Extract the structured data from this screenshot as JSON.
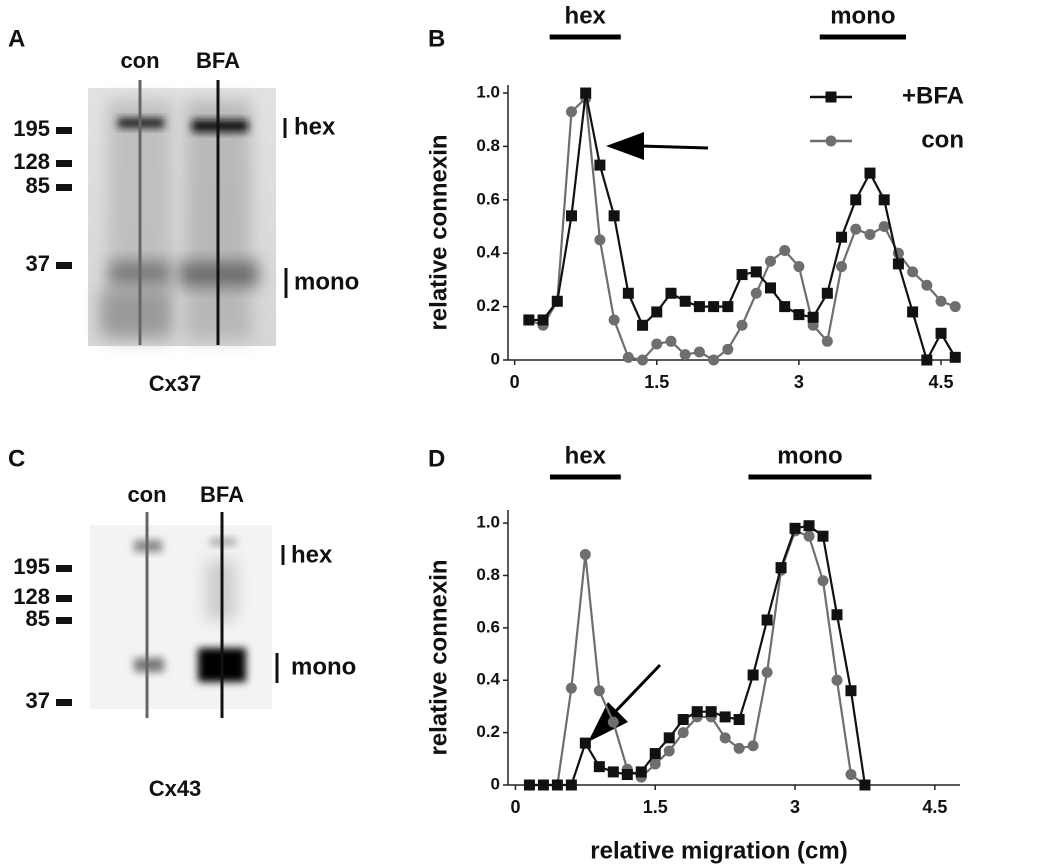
{
  "panel_letters": [
    "A",
    "B",
    "C",
    "D"
  ],
  "blots": [
    {
      "lanes": [
        "con",
        "BFA"
      ],
      "markers": [
        195,
        128,
        85,
        37
      ],
      "bands": [
        "hex",
        "mono"
      ],
      "name": "Cx37"
    },
    {
      "lanes": [
        "con",
        "BFA"
      ],
      "markers": [
        195,
        128,
        85,
        37
      ],
      "bands": [
        "hex",
        "mono"
      ],
      "name": "Cx43"
    }
  ],
  "chart_data": [
    {
      "type": "line",
      "ylabel": "relative connexin",
      "regions": [
        {
          "label": "hex",
          "range": [
            0.37,
            1.12
          ]
        },
        {
          "label": "mono",
          "range": [
            3.22,
            4.13
          ]
        }
      ],
      "xlim": [
        -0.07,
        4.7
      ],
      "ylim": [
        0,
        1.03
      ],
      "xticks": [
        0,
        1.5,
        3,
        4.5
      ],
      "yticks": [
        0,
        {
          "value": 0.2,
          "label": "0.2"
        },
        {
          "value": 0.4,
          "label": "0.4"
        },
        {
          "value": 0.6,
          "label": "0.6"
        },
        {
          "value": 0.8,
          "label": "0.8"
        },
        {
          "value": 1,
          "label": "1.0"
        }
      ],
      "legend": "top-right",
      "x": [
        0.15,
        0.3,
        0.45,
        0.6,
        0.75,
        0.9,
        1.05,
        1.2,
        1.35,
        1.5,
        1.65,
        1.8,
        1.95,
        2.1,
        2.25,
        2.4,
        2.55,
        2.7,
        2.85,
        3.0,
        3.15,
        3.3,
        3.45,
        3.6,
        3.75,
        3.9,
        4.05,
        4.2,
        4.35,
        4.5,
        4.65
      ],
      "series": [
        {
          "name": "+BFA",
          "color": "#111111",
          "marker": "square",
          "values": [
            0.15,
            0.15,
            0.22,
            0.54,
            1.0,
            0.73,
            0.54,
            0.25,
            0.13,
            0.18,
            0.25,
            0.22,
            0.2,
            0.2,
            0.2,
            0.32,
            0.33,
            0.27,
            0.2,
            0.17,
            0.16,
            0.25,
            0.46,
            0.6,
            0.7,
            0.6,
            0.36,
            0.18,
            0,
            0.1,
            0.01
          ]
        },
        {
          "name": "con",
          "color": "#6e6e6e",
          "marker": "circle",
          "values": [
            0.15,
            0.13,
            0.22,
            0.93,
            0.98,
            0.45,
            0.15,
            0.01,
            0,
            0.06,
            0.07,
            0.02,
            0.03,
            0,
            0.04,
            0.13,
            0.25,
            0.37,
            0.41,
            0.35,
            0.13,
            0.07,
            0.35,
            0.49,
            0.47,
            0.5,
            0.4,
            0.33,
            0.28,
            0.22,
            0.2
          ]
        }
      ]
    },
    {
      "type": "line",
      "ylabel": "relative connexin",
      "xlabel": "relative migration (cm)",
      "regions": [
        {
          "label": "hex",
          "range": [
            0.37,
            1.13
          ]
        },
        {
          "label": "mono",
          "range": [
            2.5,
            3.82
          ]
        }
      ],
      "xlim": [
        -0.08,
        4.77
      ],
      "ylim": [
        0,
        1.05
      ],
      "xticks": [
        0,
        1.5,
        3,
        4.5
      ],
      "yticks": [
        0,
        {
          "value": 0.2,
          "label": "0.2"
        },
        {
          "value": 0.4,
          "label": "0.4"
        },
        {
          "value": 0.6,
          "label": "0.6"
        },
        {
          "value": 0.8,
          "label": "0.8"
        },
        {
          "value": 1,
          "label": "1.0"
        }
      ],
      "x": [
        0.15,
        0.3,
        0.45,
        0.6,
        0.75,
        0.9,
        1.05,
        1.2,
        1.35,
        1.5,
        1.65,
        1.8,
        1.95,
        2.1,
        2.25,
        2.4,
        2.55,
        2.7,
        2.85,
        3.0,
        3.15,
        3.3,
        3.45,
        3.6,
        3.75
      ],
      "series": [
        {
          "color": "#111111",
          "marker": "square",
          "values": [
            0,
            0,
            0,
            0,
            0.16,
            0.07,
            0.05,
            0.04,
            0.05,
            0.12,
            0.18,
            0.25,
            0.28,
            0.28,
            0.26,
            0.25,
            0.42,
            0.63,
            0.83,
            0.98,
            0.99,
            0.95,
            0.65,
            0.36,
            0
          ]
        },
        {
          "color": "#6e6e6e",
          "marker": "circle",
          "values": [
            0,
            0,
            0,
            0.37,
            0.88,
            0.36,
            0.24,
            0.06,
            0.03,
            0.08,
            0.13,
            0.2,
            0.26,
            0.26,
            0.18,
            0.14,
            0.15,
            0.43,
            0.82,
            0.97,
            0.95,
            0.78,
            0.4,
            0.04,
            0
          ]
        }
      ]
    }
  ]
}
